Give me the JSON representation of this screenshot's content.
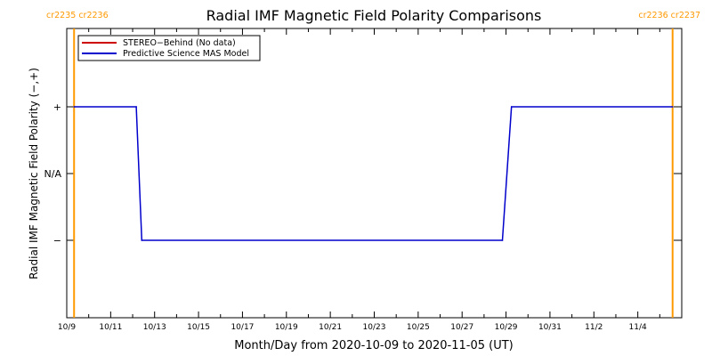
{
  "chart_data": {
    "type": "line",
    "title": "Radial IMF Magnetic Field Polarity Comparisons",
    "xlabel": "Month/Day from 2020-10-09 to 2020-11-05 (UT)",
    "ylabel": "Radial IMF Magnetic Field Polarity (−,+)",
    "x_range": [
      "2020-10-09",
      "2020-11-05"
    ],
    "x_ticks": [
      "10/9",
      "10/11",
      "10/13",
      "10/15",
      "10/17",
      "10/19",
      "10/21",
      "10/23",
      "10/25",
      "10/27",
      "10/29",
      "10/31",
      "11/2",
      "11/4"
    ],
    "y_ticks": [
      "+",
      "N/A",
      "−"
    ],
    "grid": false,
    "legend_position": "top-left",
    "carrington_markers": [
      {
        "date": "2020-10-09T08:00",
        "labels": [
          "cr2235",
          "cr2236"
        ],
        "color": "#ff9900"
      },
      {
        "date": "2020-11-05T14:00",
        "labels": [
          "cr2236",
          "cr2237"
        ],
        "color": "#ff9900"
      }
    ],
    "series": [
      {
        "name": "STEREO−Behind (No data)",
        "color": "#cc0000",
        "values": []
      },
      {
        "name": "Predictive Science MAS Model",
        "color": "#0000cc",
        "points": [
          {
            "x": "2020-10-09T08:00",
            "y": "+"
          },
          {
            "x": "2020-10-12T04:00",
            "y": "+"
          },
          {
            "x": "2020-10-12T10:00",
            "y": "−"
          },
          {
            "x": "2020-10-28T20:00",
            "y": "−"
          },
          {
            "x": "2020-10-29T06:00",
            "y": "+"
          },
          {
            "x": "2020-11-05T14:00",
            "y": "+"
          }
        ]
      }
    ]
  }
}
